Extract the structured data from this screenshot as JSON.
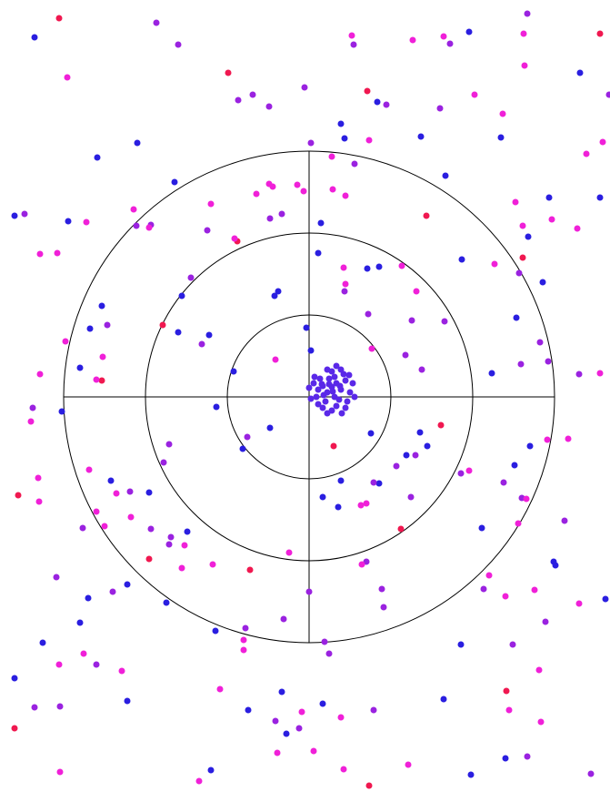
{
  "chart_data": {
    "type": "scatter",
    "xlim": [
      -340,
      331
    ],
    "ylim": [
      -434,
      436
    ],
    "rings": [
      90,
      180,
      270
    ],
    "ring_color": "#000000",
    "series": [
      {
        "color": "#f01850",
        "x": [
          -275,
          64,
          129,
          -79,
          -161,
          235,
          27,
          145,
          -320,
          -176,
          -65,
          101,
          217,
          66,
          320,
          -324,
          -89,
          -228
        ],
        "values": [
          416,
          336,
          199,
          171,
          79,
          153,
          -54,
          -31,
          -108,
          -178,
          -190,
          -145,
          -323,
          -427,
          399,
          -364,
          356,
          18
        ]
      },
      {
        "color": "#2a1ee0",
        "x": [
          -302,
          176,
          -189,
          -233,
          -148,
          -265,
          -324,
          13,
          10,
          77,
          64,
          168,
          -140,
          -228,
          -241,
          -110,
          -3,
          2,
          -83,
          -102,
          -43,
          -73,
          68,
          122,
          130,
          35,
          15,
          32,
          77,
          107,
          243,
          226,
          190,
          269,
          -218,
          -176,
          -134,
          -200,
          -243,
          -252,
          -157,
          -103,
          -293,
          -200,
          -67,
          -25,
          -30,
          15,
          167,
          148,
          216,
          178,
          -324,
          -108,
          201,
          264,
          320,
          298,
          211,
          150,
          123,
          35,
          39,
          75,
          271,
          326,
          241,
          257,
          228,
          -38,
          -34,
          -144,
          -272,
          -252
        ],
        "values": [
          395,
          401,
          279,
          263,
          236,
          193,
          199,
          191,
          158,
          143,
          141,
          151,
          111,
          100,
          75,
          68,
          76,
          51,
          28,
          -11,
          -34,
          -57,
          -40,
          -39,
          -54,
          -92,
          -110,
          -121,
          -95,
          -64,
          -54,
          -75,
          -144,
          -181,
          -92,
          -105,
          -148,
          -206,
          -221,
          -248,
          -226,
          -257,
          -270,
          -334,
          -344,
          -370,
          -324,
          -337,
          -272,
          -332,
          -397,
          -415,
          -309,
          -410,
          26,
          219,
          219,
          356,
          285,
          243,
          286,
          300,
          284,
          324,
          -185,
          -222,
          176,
          126,
          87,
          111,
          116,
          71,
          -16,
          32
        ]
      },
      {
        "color": "#9a22e0",
        "x": [
          -144,
          -168,
          49,
          155,
          -62,
          -78,
          -44,
          -5,
          85,
          144,
          2,
          50,
          -313,
          -190,
          -174,
          -43,
          -30,
          -112,
          -130,
          -222,
          -118,
          39,
          65,
          149,
          113,
          124,
          106,
          231,
          254,
          263,
          233,
          297,
          -304,
          -154,
          -160,
          -68,
          96,
          71,
          112,
          117,
          234,
          214,
          167,
          -197,
          -152,
          -174,
          -249,
          -278,
          -216,
          -154,
          0,
          63,
          80,
          82,
          22,
          192,
          260,
          281,
          224,
          240,
          310,
          -302,
          -274,
          -234,
          -37,
          -11,
          71,
          17,
          -70,
          -28,
          240,
          330
        ],
        "values": [
          387,
          411,
          387,
          388,
          332,
          326,
          319,
          340,
          321,
          317,
          279,
          256,
          201,
          188,
          189,
          196,
          201,
          183,
          131,
          79,
          58,
          116,
          91,
          83,
          84,
          30,
          46,
          136,
          60,
          39,
          36,
          25,
          -12,
          -52,
          -72,
          -44,
          -76,
          -94,
          -110,
          -64,
          -111,
          -94,
          -84,
          -104,
          -154,
          -145,
          -144,
          -198,
          -214,
          -162,
          -214,
          -181,
          -211,
          -231,
          -282,
          -211,
          -247,
          -136,
          -272,
          -395,
          -414,
          -341,
          -340,
          -294,
          -356,
          -364,
          -344,
          -269,
          -254,
          -244,
          421,
          332
        ]
      },
      {
        "color": "#f020d8",
        "x": [
          -277,
          -266,
          47,
          114,
          148,
          236,
          237,
          182,
          213,
          323,
          305,
          66,
          25,
          -13,
          -6,
          40,
          26,
          -44,
          -40,
          -58,
          -108,
          -193,
          -176,
          -245,
          -296,
          -82,
          227,
          235,
          267,
          295,
          204,
          38,
          102,
          118,
          40,
          69,
          -37,
          -234,
          -296,
          320,
          262,
          285,
          239,
          176,
          63,
          57,
          -297,
          -242,
          -225,
          -234,
          -212,
          -196,
          -137,
          -106,
          -140,
          -22,
          58,
          198,
          230,
          248,
          216,
          297,
          253,
          220,
          255,
          -72,
          -72,
          -98,
          35,
          -8,
          5,
          38,
          109,
          -35,
          -121,
          -206,
          -248,
          -275,
          -274,
          -298,
          -306,
          -227,
          -268
        ],
        "values": [
          158,
          351,
          397,
          392,
          396,
          399,
          364,
          332,
          311,
          280,
          267,
          282,
          264,
          233,
          226,
          221,
          228,
          234,
          231,
          223,
          212,
          206,
          186,
          192,
          157,
          174,
          214,
          188,
          195,
          185,
          146,
          142,
          144,
          116,
          124,
          53,
          41,
          19,
          25,
          26,
          -47,
          -46,
          -112,
          -81,
          -117,
          -119,
          -115,
          -80,
          -142,
          -126,
          -106,
          -132,
          -163,
          -184,
          -188,
          -171,
          -184,
          -196,
          -139,
          -212,
          -219,
          -227,
          -300,
          -344,
          -357,
          -267,
          -278,
          -321,
          -352,
          -346,
          -389,
          -409,
          -404,
          -391,
          -422,
          -301,
          -282,
          -294,
          -412,
          -89,
          -27,
          44,
          61
        ]
      },
      {
        "color": "#5a28e8",
        "x": [
          25,
          20,
          30,
          15,
          35,
          22,
          28,
          10,
          40,
          18,
          33,
          12,
          38,
          25,
          5,
          45,
          30,
          15,
          42,
          8,
          20,
          35,
          0,
          48,
          25,
          40,
          10,
          22,
          28,
          16,
          34,
          26,
          44,
          6,
          50,
          20,
          36,
          2,
          30,
          14
        ],
        "values": [
          11,
          5,
          15,
          12,
          8,
          20,
          0,
          8,
          18,
          -5,
          -3,
          20,
          25,
          28,
          15,
          5,
          -10,
          -12,
          -5,
          0,
          30,
          30,
          10,
          15,
          -15,
          -12,
          -8,
          14,
          22,
          2,
          12,
          6,
          24,
          22,
          0,
          -18,
          -18,
          -2,
          34,
          14
        ]
      }
    ]
  }
}
